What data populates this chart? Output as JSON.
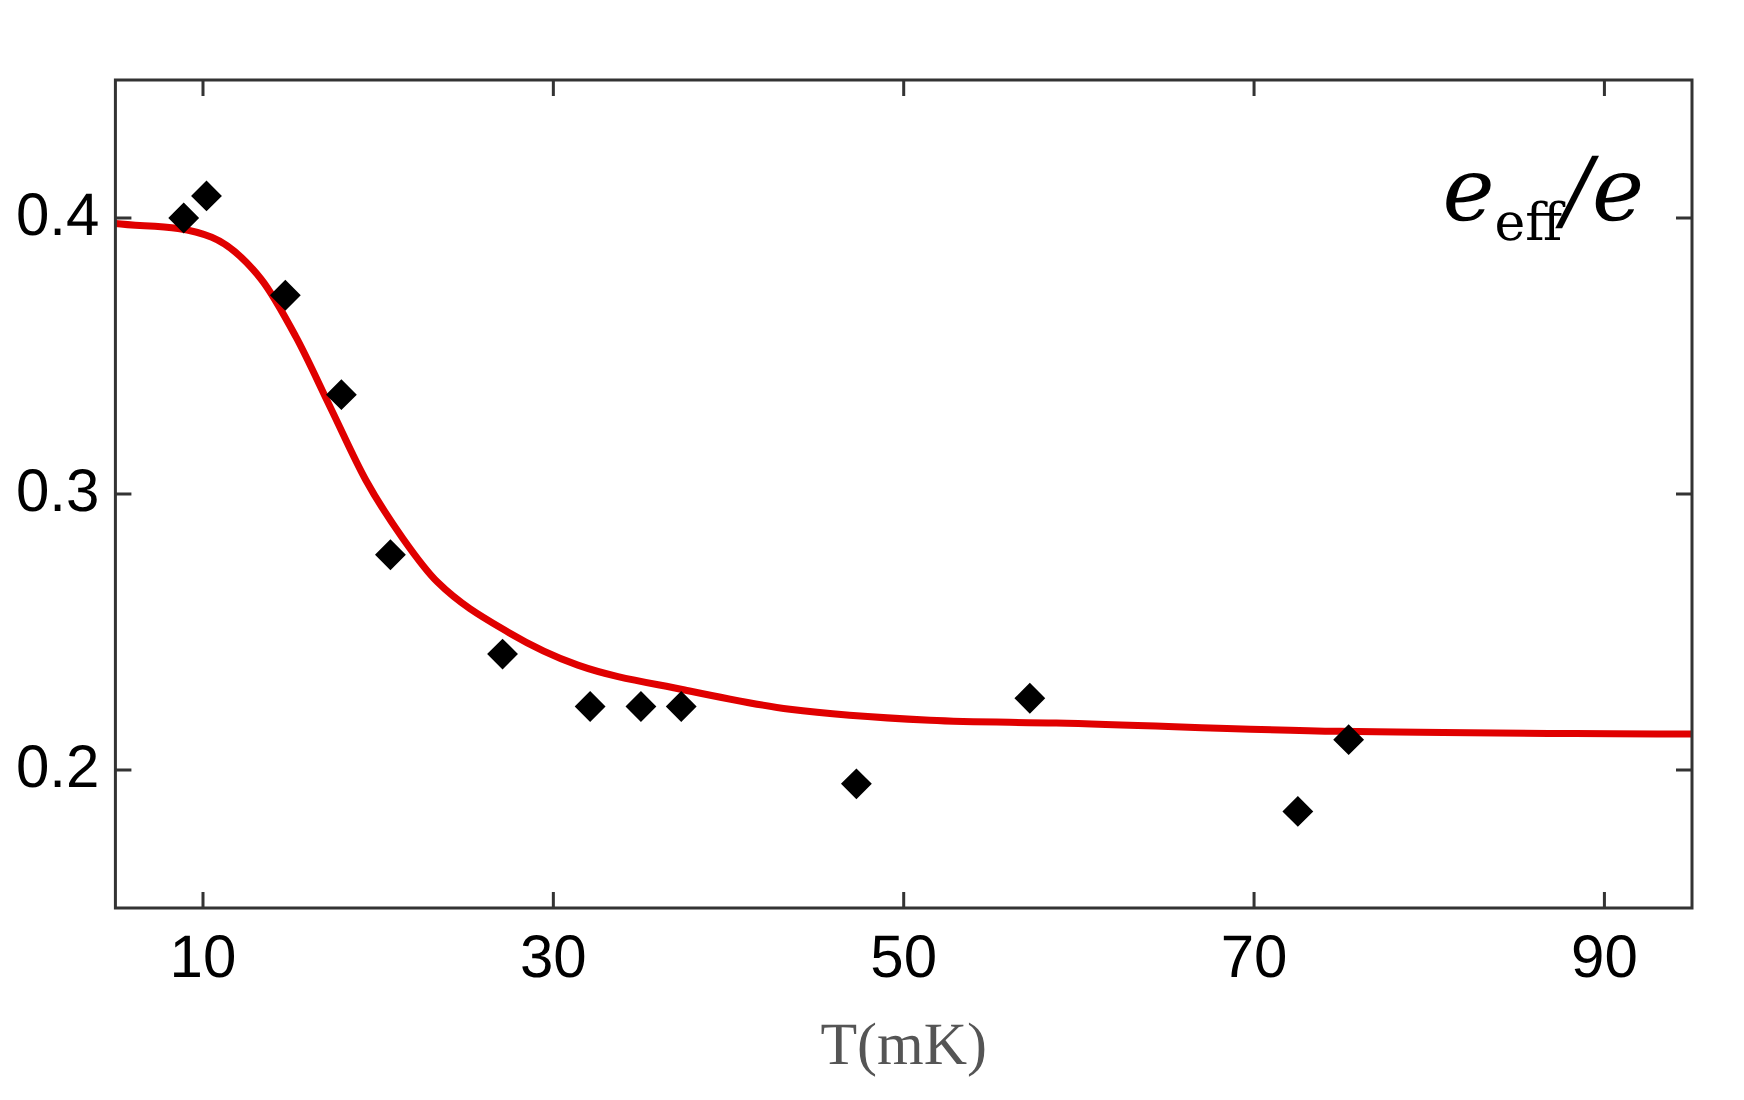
{
  "chart_data": {
    "type": "scatter",
    "xlabel": "T(mK)",
    "annotations": [
      "e$_{eff}$/e"
    ],
    "xlim": [
      5,
      95
    ],
    "xticks": [
      10,
      30,
      50,
      70,
      90
    ],
    "ylim": [
      0.15,
      0.45
    ],
    "yticks": [
      0.2,
      0.3,
      0.4
    ],
    "grid": false,
    "legend": false,
    "series": [
      {
        "type": "scatter",
        "color": "#000000",
        "marker": "diamond",
        "x": [
          8.9,
          10.2,
          14.7,
          17.9,
          20.7,
          27.1,
          32.1,
          35.0,
          37.3,
          47.3,
          57.2,
          72.5,
          75.4
        ],
        "values": [
          0.4,
          0.408,
          0.372,
          0.336,
          0.278,
          0.242,
          0.223,
          0.223,
          0.223,
          0.195,
          0.226,
          0.185,
          0.211
        ]
      },
      {
        "type": "line",
        "color": "#e00000",
        "marker": "none",
        "x": [
          5,
          10.5,
          13.3,
          15.3,
          17.3,
          19.3,
          21.4,
          23.4,
          27.4,
          31.4,
          37.5,
          43.5,
          51.5,
          58.7,
          74.9,
          95
        ],
        "values": [
          0.398,
          0.393,
          0.378,
          0.357,
          0.331,
          0.305,
          0.284,
          0.268,
          0.25,
          0.238,
          0.229,
          0.222,
          0.218,
          0.217,
          0.214,
          0.213
        ]
      }
    ]
  }
}
